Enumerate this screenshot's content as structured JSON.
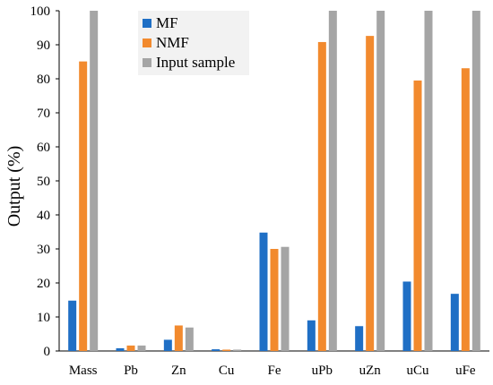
{
  "chart_data": {
    "type": "bar",
    "title": "",
    "xlabel": "",
    "ylabel": "Output (%)",
    "ylim": [
      0,
      100
    ],
    "yticks": [
      0,
      10,
      20,
      30,
      40,
      50,
      60,
      70,
      80,
      90,
      100
    ],
    "grid": false,
    "legend_position": "top-left",
    "categories": [
      "Mass",
      "Pb",
      "Zn",
      "Cu",
      "Fe",
      "uPb",
      "uZn",
      "uCu",
      "uFe"
    ],
    "series": [
      {
        "name": "MF",
        "color": "#1f6fc5",
        "values": [
          14.8,
          0.8,
          3.3,
          0.5,
          34.8,
          9.0,
          7.3,
          20.4,
          16.8
        ]
      },
      {
        "name": "NMF",
        "color": "#f28a2e",
        "values": [
          85.1,
          1.6,
          7.5,
          0.4,
          30.0,
          90.8,
          92.6,
          79.5,
          83.1
        ]
      },
      {
        "name": "Input sample",
        "color": "#a5a5a5",
        "values": [
          100,
          1.6,
          6.9,
          0.4,
          30.6,
          100,
          100,
          100,
          100
        ]
      }
    ]
  }
}
